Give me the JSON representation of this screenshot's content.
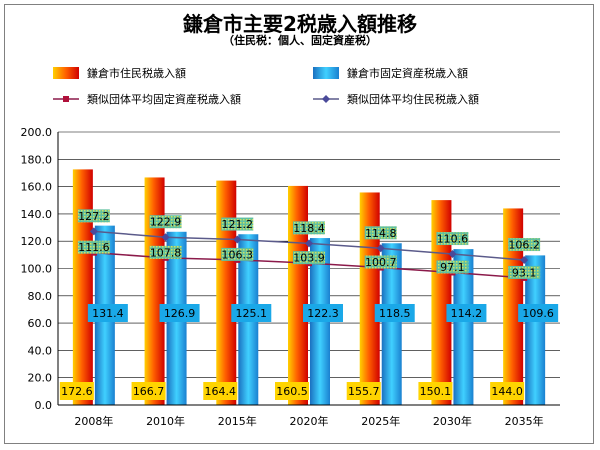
{
  "title": "鎌倉市主要2税歳入額推移",
  "subtitle": "（住民税：個人、固定資産税）",
  "colors": {
    "resident_bar": "#e01010",
    "property_bar": "#18a8e0",
    "avg_property_line": "#8b1a4a",
    "avg_resident_line": "#5a5a8a"
  },
  "chart_data": {
    "type": "bar",
    "categories": [
      "2008年",
      "2010年",
      "2015年",
      "2020年",
      "2025年",
      "2030年",
      "2035年"
    ],
    "ylim": [
      0,
      200
    ],
    "yticks": [
      "0.0",
      "20.0",
      "40.0",
      "60.0",
      "80.0",
      "100.0",
      "120.0",
      "140.0",
      "160.0",
      "180.0",
      "200.0"
    ],
    "grid": true,
    "legend_position": "top",
    "series": [
      {
        "name": "鎌倉市住民税歳入額",
        "type": "bar",
        "values": [
          172.6,
          166.7,
          164.4,
          160.5,
          155.7,
          150.1,
          144.0
        ]
      },
      {
        "name": "鎌倉市固定資産税歳入額",
        "type": "bar",
        "values": [
          131.4,
          126.9,
          125.1,
          122.3,
          118.5,
          114.2,
          109.6
        ]
      },
      {
        "name": "類似団体平均固定資産税歳入額",
        "type": "line",
        "marker": "square",
        "values": [
          111.6,
          107.8,
          106.3,
          103.9,
          100.7,
          97.1,
          93.1
        ]
      },
      {
        "name": "類似団体平均住民税歳入額",
        "type": "line",
        "marker": "diamond",
        "values": [
          127.2,
          122.9,
          121.2,
          118.4,
          114.8,
          110.6,
          106.2
        ]
      }
    ],
    "data_labels": {
      "resident": [
        "172.6",
        "166.7",
        "164.4",
        "160.5",
        "155.7",
        "150.1",
        "144.0"
      ],
      "property": [
        "131.4",
        "126.9",
        "125.1",
        "122.3",
        "118.5",
        "114.2",
        "109.6"
      ],
      "avg_property": [
        "111.6",
        "107.8",
        "106.3",
        "103.9",
        "100.7",
        "97.1",
        "93.1"
      ],
      "avg_resident": [
        "127.2",
        "122.9",
        "121.2",
        "118.4",
        "114.8",
        "110.6",
        "106.2"
      ]
    }
  }
}
